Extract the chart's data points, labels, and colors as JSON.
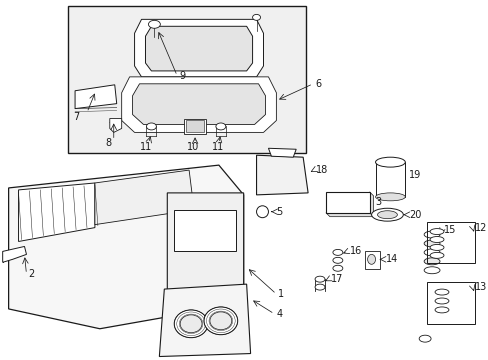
{
  "bg_color": "#ffffff",
  "line_color": "#1a1a1a",
  "fig_width": 4.89,
  "fig_height": 3.6,
  "dpi": 100,
  "inset_fill": "#f0f0f0",
  "part_fill": "#f8f8f8",
  "font_size": 7.0
}
